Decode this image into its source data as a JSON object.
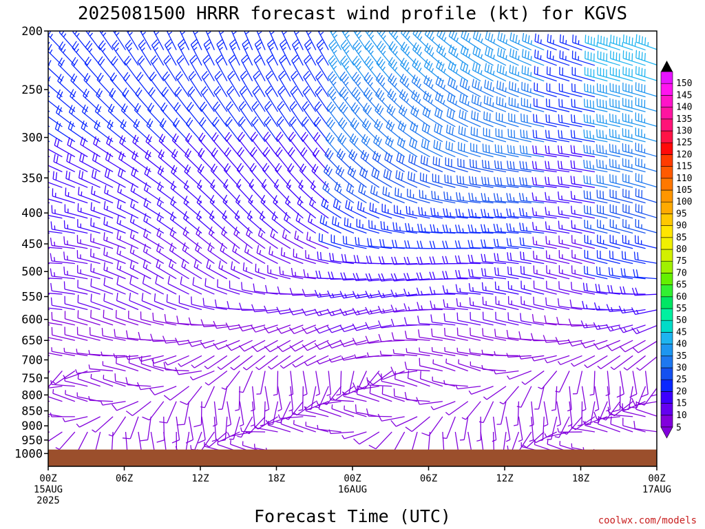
{
  "chart_data": {
    "type": "wind_barb_profile",
    "title": "2025081500 HRRR forecast wind profile (kt) for KGVS",
    "xlabel": "Forecast Time (UTC)",
    "ylabel": "",
    "credit": "coolwx.com/models",
    "x_range_hours": [
      0,
      48
    ],
    "y_range_hpa": [
      200,
      1050
    ],
    "y_scale": "log",
    "y_ticks": [
      200,
      250,
      300,
      350,
      400,
      450,
      500,
      550,
      600,
      650,
      700,
      750,
      800,
      850,
      900,
      950,
      1000
    ],
    "x_ticks": [
      {
        "hour": 0,
        "labels": [
          "00Z",
          "15AUG",
          "2025"
        ]
      },
      {
        "hour": 6,
        "labels": [
          "06Z"
        ]
      },
      {
        "hour": 12,
        "labels": [
          "12Z"
        ]
      },
      {
        "hour": 18,
        "labels": [
          "18Z"
        ]
      },
      {
        "hour": 24,
        "labels": [
          "00Z",
          "16AUG"
        ]
      },
      {
        "hour": 30,
        "labels": [
          "06Z"
        ]
      },
      {
        "hour": 36,
        "labels": [
          "12Z"
        ]
      },
      {
        "hour": 42,
        "labels": [
          "18Z"
        ]
      },
      {
        "hour": 48,
        "labels": [
          "00Z",
          "17AUG"
        ]
      }
    ],
    "surface_pressure_hpa": 985,
    "surface_color": "#9b4f2c",
    "units": "kt",
    "colorbar": {
      "levels": [
        5,
        10,
        15,
        20,
        25,
        30,
        35,
        40,
        45,
        50,
        55,
        60,
        65,
        70,
        75,
        80,
        85,
        90,
        95,
        100,
        105,
        110,
        115,
        120,
        125,
        130,
        135,
        140,
        145,
        150
      ],
      "colors": [
        "#8200dc",
        "#6400f0",
        "#3c00ff",
        "#0a28ff",
        "#1450f0",
        "#1e78f0",
        "#1e96f0",
        "#1eb4f0",
        "#00dcc8",
        "#00f0a0",
        "#00e664",
        "#32f032",
        "#64f000",
        "#a0f000",
        "#d2f000",
        "#f0f000",
        "#ffe600",
        "#ffc800",
        "#ffaa00",
        "#ff9600",
        "#ff7800",
        "#ff5a00",
        "#ff3c00",
        "#ff0a0a",
        "#ff1446",
        "#ff1478",
        "#ff14a0",
        "#ff14c8",
        "#ff14f0",
        "#e614ff"
      ]
    },
    "sample_winds": [
      {
        "hour": 0,
        "p": 500,
        "dir_deg": 270,
        "speed_kt": 10
      },
      {
        "hour": 12,
        "p": 300,
        "dir_deg": 260,
        "speed_kt": 20
      },
      {
        "hour": 24,
        "p": 350,
        "dir_deg": 330,
        "speed_kt": 30
      },
      {
        "hour": 30,
        "p": 250,
        "dir_deg": 340,
        "speed_kt": 30
      },
      {
        "hour": 45,
        "p": 200,
        "dir_deg": 350,
        "speed_kt": 45
      },
      {
        "hour": 36,
        "p": 700,
        "dir_deg": 300,
        "speed_kt": 10
      },
      {
        "hour": 18,
        "p": 850,
        "dir_deg": 240,
        "speed_kt": 5
      }
    ]
  }
}
